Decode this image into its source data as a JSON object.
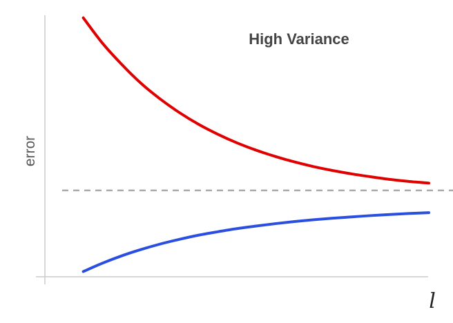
{
  "chart_data": {
    "type": "line",
    "title": "High Variance",
    "xlabel": "l",
    "ylabel": "error",
    "xlim": [
      0,
      10
    ],
    "ylim": [
      0,
      10
    ],
    "grid": false,
    "series": [
      {
        "color": "#e00000",
        "x": [
          1,
          1.5,
          2,
          2.5,
          3,
          3.5,
          4,
          4.5,
          5,
          5.5,
          6,
          6.5,
          7,
          7.5,
          8,
          8.5,
          9,
          9.5,
          10
        ],
        "values": [
          9.9,
          8.93,
          8.12,
          7.4,
          6.8,
          6.28,
          5.83,
          5.45,
          5.12,
          4.84,
          4.6,
          4.39,
          4.21,
          4.06,
          3.93,
          3.82,
          3.72,
          3.64,
          3.58
        ]
      },
      {
        "color": "#2a4fe0",
        "x": [
          1,
          1.5,
          2,
          2.5,
          3,
          3.5,
          4,
          4.5,
          5,
          5.5,
          6,
          6.5,
          7,
          7.5,
          8,
          8.5,
          9,
          9.5,
          10
        ],
        "values": [
          0.2,
          0.52,
          0.8,
          1.04,
          1.25,
          1.43,
          1.59,
          1.72,
          1.84,
          1.94,
          2.03,
          2.11,
          2.18,
          2.24,
          2.29,
          2.34,
          2.38,
          2.42,
          2.45
        ]
      }
    ],
    "reference_line": {
      "y": 3.3,
      "style": "dashed",
      "color": "#aaaaaa"
    }
  }
}
